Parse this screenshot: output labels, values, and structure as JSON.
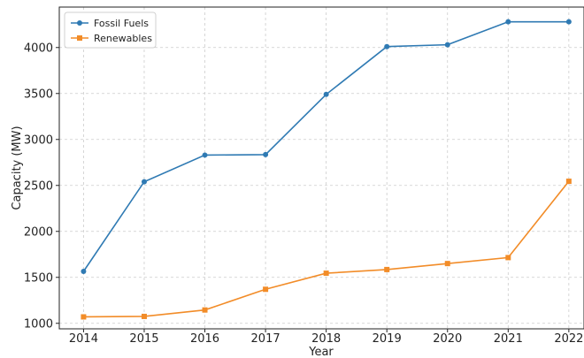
{
  "chart_data": {
    "type": "line",
    "title": "",
    "xlabel": "Year",
    "ylabel": "Capacity (MW)",
    "x": [
      2014,
      2015,
      2016,
      2017,
      2018,
      2019,
      2020,
      2021,
      2022
    ],
    "xlim": [
      2013.6,
      2022.25
    ],
    "ylim": [
      940,
      4440
    ],
    "yticks": [
      1000,
      1500,
      2000,
      2500,
      3000,
      3500,
      4000
    ],
    "grid": true,
    "legend_position": "top-left",
    "series": [
      {
        "name": "Fossil Fuels",
        "color": "#2f7ab3",
        "marker": "circle",
        "values": [
          1565,
          2540,
          2830,
          2835,
          3490,
          4010,
          4030,
          4280,
          4280
        ]
      },
      {
        "name": "Renewables",
        "color": "#f28c28",
        "marker": "square",
        "values": [
          1070,
          1075,
          1145,
          1370,
          1545,
          1585,
          1650,
          1715,
          2545
        ]
      }
    ]
  }
}
